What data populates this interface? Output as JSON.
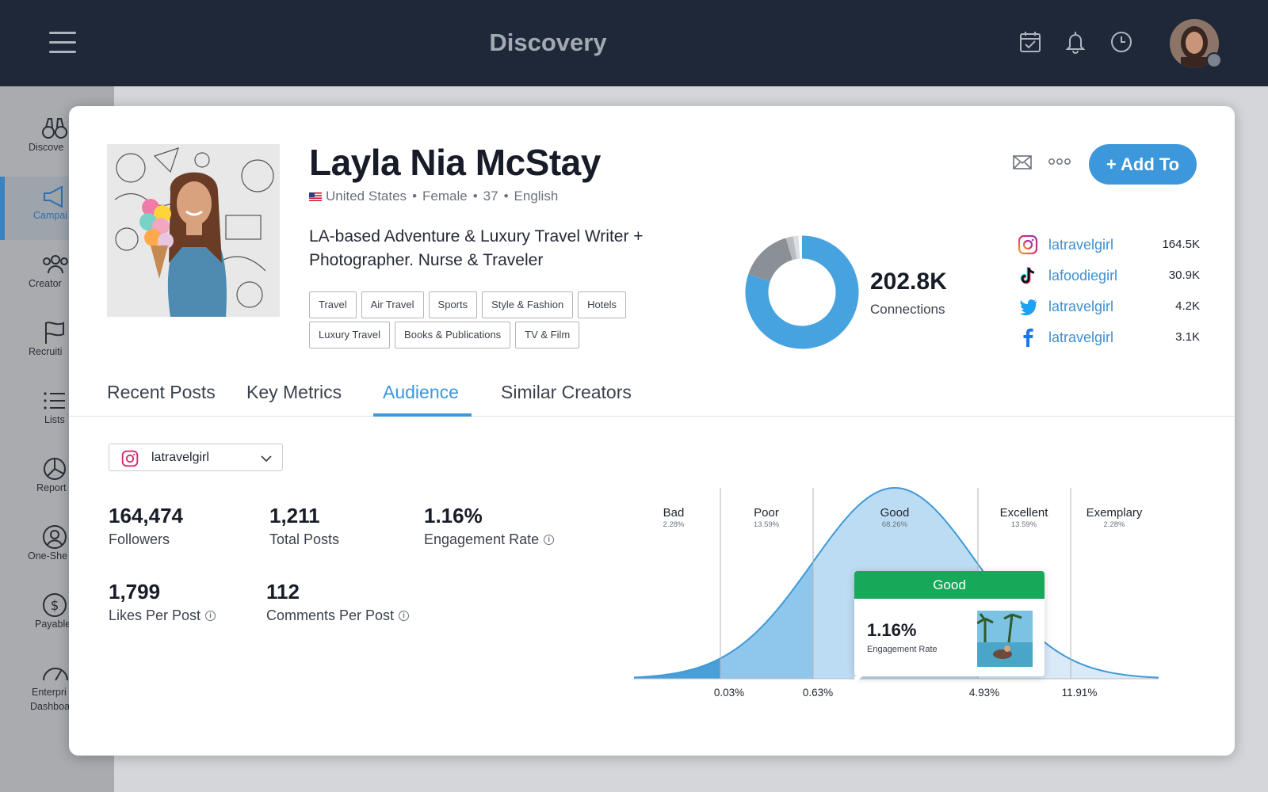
{
  "header": {
    "title": "Discovery"
  },
  "sidebar": {
    "items": [
      {
        "label": "Discove",
        "icon": "binoculars-icon"
      },
      {
        "label": "Campai",
        "icon": "megaphone-icon",
        "active": true
      },
      {
        "label": "Creator",
        "icon": "users-icon"
      },
      {
        "label": "Recruiti",
        "icon": "flag-icon"
      },
      {
        "label": "Lists",
        "icon": "list-icon"
      },
      {
        "label": "Report",
        "icon": "pie-chart-icon"
      },
      {
        "label": "One-She",
        "icon": "user-circle-icon"
      },
      {
        "label": "Payable",
        "icon": "dollar-icon"
      },
      {
        "label": "Enterpri",
        "label2": "Dashboa",
        "icon": "gauge-icon"
      }
    ]
  },
  "profile": {
    "name": "Layla Nia McStay",
    "country": "United States",
    "gender": "Female",
    "age": "37",
    "language": "English",
    "separator": "•",
    "bio": "LA-based Adventure & Luxury Travel Writer + Photographer. Nurse & Traveler",
    "tags": [
      "Travel",
      "Air Travel",
      "Sports",
      "Style & Fashion",
      "Hotels",
      "Luxury Travel",
      "Books & Publications",
      "TV & Film"
    ],
    "add_button": "+ Add To"
  },
  "connections": {
    "value": "202.8K",
    "label": "Connections",
    "segments": [
      {
        "share": 0.802,
        "color": "#47a3e0"
      },
      {
        "share": 0.152,
        "color": "#8b9096"
      },
      {
        "share": 0.021,
        "color": "#b9bdc2"
      },
      {
        "share": 0.015,
        "color": "#dcdee1"
      }
    ]
  },
  "socials": [
    {
      "platform": "instagram",
      "handle": "latravelgirl",
      "count": "164.5K"
    },
    {
      "platform": "tiktok",
      "handle": "lafoodiegirl",
      "count": "30.9K"
    },
    {
      "platform": "twitter",
      "handle": "latravelgirl",
      "count": "4.2K"
    },
    {
      "platform": "facebook",
      "handle": "latravelgirl",
      "count": "3.1K"
    }
  ],
  "tabs": [
    "Recent Posts",
    "Key Metrics",
    "Audience",
    "Similar Creators"
  ],
  "active_tab": "Audience",
  "account_select": {
    "value": "latravelgirl"
  },
  "stats": {
    "followers": {
      "value": "164,474",
      "label": "Followers"
    },
    "total_posts": {
      "value": "1,211",
      "label": "Total Posts"
    },
    "engagement_rate": {
      "value": "1.16%",
      "label": "Engagement Rate"
    },
    "likes_per_post": {
      "value": "1,799",
      "label": "Likes Per Post"
    },
    "comments_per_post": {
      "value": "112",
      "label": "Comments Per Post"
    }
  },
  "chart_data": {
    "type": "area",
    "bands": [
      {
        "name": "Bad",
        "share": "2.28%"
      },
      {
        "name": "Poor",
        "share": "13.59%"
      },
      {
        "name": "Good",
        "share": "68.26%"
      },
      {
        "name": "Excellent",
        "share": "13.59%"
      },
      {
        "name": "Exemplary",
        "share": "2.28%"
      }
    ],
    "thresholds": [
      "0.03%",
      "0.63%",
      "4.93%",
      "11.91%"
    ],
    "highlighted_band": "Good",
    "curve_color": "#3d9ad8"
  },
  "tooltip": {
    "title": "Good",
    "value": "1.16%",
    "label": "Engagement Rate"
  }
}
